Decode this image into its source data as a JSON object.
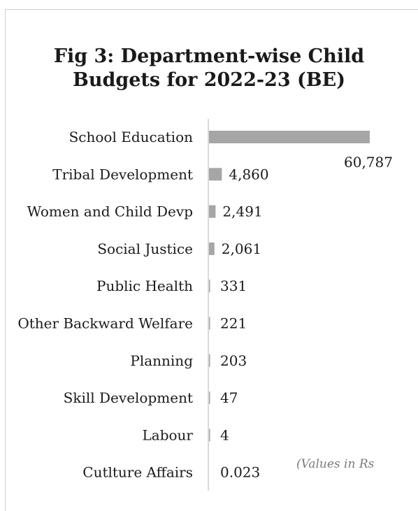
{
  "chart_data": {
    "type": "bar",
    "orientation": "horizontal",
    "title_lines": [
      "Fig 3: Department-wise Child",
      "Budgets for 2022-23 (BE)"
    ],
    "categories": [
      "School Education",
      "Tribal Development",
      "Women and Child Devp",
      "Social Justice",
      "Public Health",
      "Other Backward Welfare",
      "Planning",
      "Skill Development",
      "Labour",
      "Cutlture Affairs"
    ],
    "values": [
      60787,
      4860,
      2491,
      2061,
      331,
      221,
      203,
      47,
      4,
      0.023
    ],
    "value_labels": [
      "60,787",
      "4,860",
      "2,491",
      "2,061",
      "331",
      "221",
      "203",
      "47",
      "4",
      "0.023"
    ],
    "note": "(Values in Rs",
    "grid": false,
    "bar_color": "#a6a6a6",
    "axis_color": "#d9d9d9"
  }
}
